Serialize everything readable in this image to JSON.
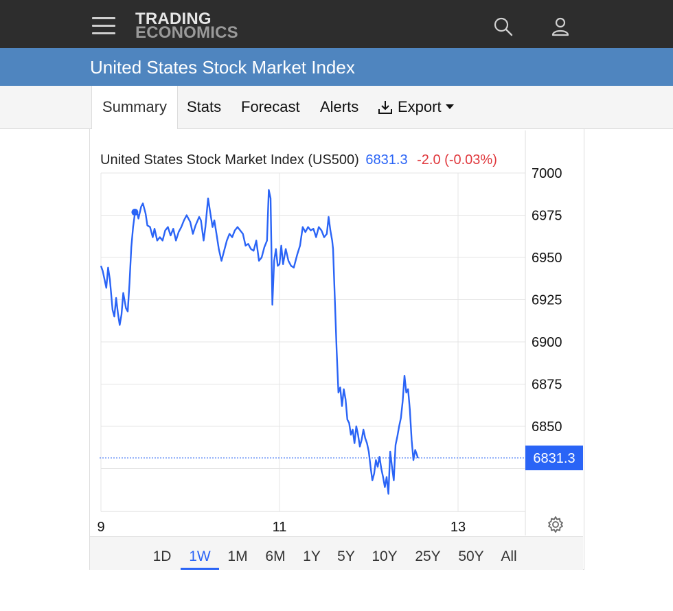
{
  "brand": {
    "line1": "TRADING",
    "line2": "ECONOMICS"
  },
  "page": {
    "title": "United States Stock Market Index"
  },
  "tabs": [
    {
      "label": "Summary",
      "active": true
    },
    {
      "label": "Stats"
    },
    {
      "label": "Forecast"
    },
    {
      "label": "Alerts"
    },
    {
      "label": "Export",
      "icon": "download-icon",
      "has_dropdown": true
    }
  ],
  "quote": {
    "name": "United States Stock Market Index (US500)",
    "price": "6831.3",
    "change": "-2.0 (-0.03%)",
    "last_label": "6831.3"
  },
  "ranges": {
    "items": [
      "1D",
      "1W",
      "1M",
      "6M",
      "1Y",
      "5Y",
      "10Y",
      "25Y",
      "50Y",
      "All"
    ],
    "selected": "1W"
  },
  "colors": {
    "topbar": "#2d2d2d",
    "titlebar": "#4f85bf",
    "line": "#2a64f6",
    "negative": "#e0393e"
  },
  "chart_data": {
    "type": "line",
    "series": [
      {
        "points": [
          [
            9.0,
            6945
          ],
          [
            9.02,
            6942
          ],
          [
            9.04,
            6937
          ],
          [
            9.06,
            6932
          ],
          [
            9.08,
            6944
          ],
          [
            9.1,
            6937
          ],
          [
            9.13,
            6919
          ],
          [
            9.15,
            6915
          ],
          [
            9.17,
            6926
          ],
          [
            9.19,
            6917
          ],
          [
            9.21,
            6910
          ],
          [
            9.23,
            6916
          ],
          [
            9.25,
            6929
          ],
          [
            9.28,
            6920
          ],
          [
            9.3,
            6918
          ],
          [
            9.32,
            6935
          ],
          [
            9.34,
            6956
          ],
          [
            9.36,
            6968
          ],
          [
            9.38,
            6976
          ],
          [
            9.4,
            6978
          ],
          [
            9.42,
            6973
          ],
          [
            9.45,
            6980
          ],
          [
            9.47,
            6982
          ],
          [
            9.5,
            6976
          ],
          [
            9.52,
            6969
          ],
          [
            9.55,
            6968
          ],
          [
            9.58,
            6962
          ],
          [
            9.6,
            6967
          ],
          [
            9.63,
            6960
          ],
          [
            9.66,
            6962
          ],
          [
            9.69,
            6960
          ],
          [
            9.72,
            6966
          ],
          [
            9.75,
            6968
          ],
          [
            9.78,
            6963
          ],
          [
            9.81,
            6967
          ],
          [
            9.84,
            6960
          ],
          [
            9.87,
            6965
          ],
          [
            9.9,
            6968
          ],
          [
            9.93,
            6972
          ],
          [
            9.96,
            6975
          ],
          [
            10.0,
            6971
          ],
          [
            10.03,
            6964
          ],
          [
            10.06,
            6969
          ],
          [
            10.1,
            6974
          ],
          [
            10.12,
            6972
          ],
          [
            10.15,
            6960
          ],
          [
            10.17,
            6968
          ],
          [
            10.2,
            6985
          ],
          [
            10.22,
            6978
          ],
          [
            10.25,
            6968
          ],
          [
            10.27,
            6972
          ],
          [
            10.3,
            6962
          ],
          [
            10.32,
            6955
          ],
          [
            10.35,
            6948
          ],
          [
            10.38,
            6954
          ],
          [
            10.41,
            6960
          ],
          [
            10.44,
            6964
          ],
          [
            10.47,
            6962
          ],
          [
            10.5,
            6966
          ],
          [
            10.53,
            6968
          ],
          [
            10.56,
            6966
          ],
          [
            10.59,
            6964
          ],
          [
            10.62,
            6957
          ],
          [
            10.65,
            6958
          ],
          [
            10.68,
            6955
          ],
          [
            10.71,
            6954
          ],
          [
            10.74,
            6960
          ],
          [
            10.77,
            6948
          ],
          [
            10.8,
            6950
          ],
          [
            10.83,
            6956
          ],
          [
            10.86,
            6960
          ],
          [
            10.88,
            6990
          ],
          [
            10.9,
            6985
          ],
          [
            10.92,
            6922
          ],
          [
            10.94,
            6948
          ],
          [
            10.96,
            6955
          ],
          [
            10.98,
            6945
          ],
          [
            11.0,
            6946
          ],
          [
            11.02,
            6957
          ],
          [
            11.04,
            6946
          ],
          [
            11.07,
            6955
          ],
          [
            11.1,
            6948
          ],
          [
            11.13,
            6945
          ],
          [
            11.16,
            6944
          ],
          [
            11.2,
            6952
          ],
          [
            11.23,
            6957
          ],
          [
            11.26,
            6968
          ],
          [
            11.29,
            6965
          ],
          [
            11.32,
            6968
          ],
          [
            11.35,
            6966
          ],
          [
            11.38,
            6967
          ],
          [
            11.41,
            6962
          ],
          [
            11.44,
            6968
          ],
          [
            11.47,
            6966
          ],
          [
            11.5,
            6962
          ],
          [
            11.53,
            6964
          ],
          [
            11.55,
            6974
          ],
          [
            11.57,
            6966
          ],
          [
            11.59,
            6960
          ],
          [
            11.6,
            6955
          ],
          [
            11.62,
            6925
          ],
          [
            11.64,
            6895
          ],
          [
            11.66,
            6870
          ],
          [
            11.68,
            6873
          ],
          [
            11.7,
            6862
          ],
          [
            11.72,
            6872
          ],
          [
            11.74,
            6866
          ],
          [
            11.76,
            6854
          ],
          [
            11.78,
            6852
          ],
          [
            11.8,
            6845
          ],
          [
            11.82,
            6848
          ],
          [
            11.84,
            6840
          ],
          [
            11.86,
            6850
          ],
          [
            11.88,
            6845
          ],
          [
            11.9,
            6838
          ],
          [
            11.92,
            6842
          ],
          [
            11.94,
            6848
          ],
          [
            11.96,
            6843
          ],
          [
            11.98,
            6840
          ],
          [
            12.0,
            6835
          ],
          [
            12.02,
            6826
          ],
          [
            12.04,
            6818
          ],
          [
            12.06,
            6822
          ],
          [
            12.08,
            6830
          ],
          [
            12.1,
            6826
          ],
          [
            12.12,
            6832
          ],
          [
            12.14,
            6825
          ],
          [
            12.16,
            6820
          ],
          [
            12.18,
            6814
          ],
          [
            12.2,
            6820
          ],
          [
            12.22,
            6810
          ],
          [
            12.24,
            6835
          ],
          [
            12.26,
            6826
          ],
          [
            12.28,
            6818
          ],
          [
            12.3,
            6839
          ],
          [
            12.32,
            6844
          ],
          [
            12.34,
            6850
          ],
          [
            12.36,
            6855
          ],
          [
            12.38,
            6865
          ],
          [
            12.4,
            6880
          ],
          [
            12.42,
            6870
          ],
          [
            12.44,
            6872
          ],
          [
            12.46,
            6860
          ],
          [
            12.48,
            6842
          ],
          [
            12.5,
            6830
          ],
          [
            12.52,
            6836
          ],
          [
            12.54,
            6833
          ],
          [
            12.55,
            6831.3
          ]
        ]
      }
    ],
    "xlim": [
      9.0,
      12.55
    ],
    "ylim": [
      6812,
      7000
    ],
    "xticks": [
      {
        "value": 9,
        "label": "9"
      },
      {
        "value": 11,
        "label": "11"
      },
      {
        "value": 13,
        "label": "13"
      }
    ],
    "yticks": [
      7000,
      6975,
      6950,
      6925,
      6900,
      6875,
      6850
    ],
    "last_value": 6831.3,
    "grid": true,
    "legend": "none"
  }
}
